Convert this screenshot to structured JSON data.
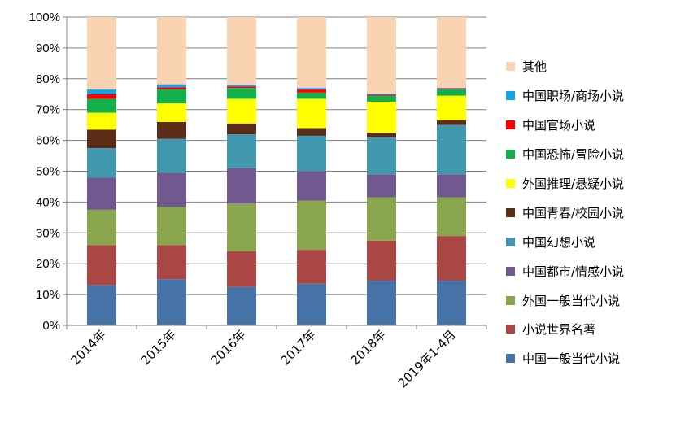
{
  "chart_data": {
    "type": "bar",
    "stacked": true,
    "percent": true,
    "categories": [
      "2014年",
      "2015年",
      "2016年",
      "2017年",
      "2018年",
      "2019年1-4月"
    ],
    "y_ticks": [
      "0%",
      "10%",
      "20%",
      "30%",
      "40%",
      "50%",
      "60%",
      "70%",
      "80%",
      "90%",
      "100%"
    ],
    "ylim": [
      0,
      100
    ],
    "legend_position": "right",
    "series": [
      {
        "name": "中国一般当代小说",
        "color": "#4572A7",
        "values": [
          13,
          15,
          12.5,
          13.5,
          14.5,
          14.5
        ]
      },
      {
        "name": "小说世界名著",
        "color": "#AA4643",
        "values": [
          13,
          11,
          11.5,
          11,
          13,
          14.5
        ]
      },
      {
        "name": "外国一般当代小说",
        "color": "#89A54E",
        "values": [
          11.5,
          12.5,
          15.5,
          16,
          14,
          12.5
        ]
      },
      {
        "name": "中国都市/情感小说",
        "color": "#71588F",
        "values": [
          10.5,
          11,
          11.5,
          9.5,
          7.5,
          7.5
        ]
      },
      {
        "name": "中国幻想小说",
        "color": "#4198AF",
        "values": [
          9.5,
          11,
          11,
          11.5,
          12,
          16
        ]
      },
      {
        "name": "中国青春/校园小说",
        "color": "#5B2C17",
        "values": [
          6,
          5.5,
          3.5,
          2.5,
          1.5,
          1.5
        ]
      },
      {
        "name": "外国推理/悬疑小说",
        "color": "#FFFF00",
        "values": [
          5.5,
          6,
          8,
          9.5,
          10,
          8
        ]
      },
      {
        "name": "中国恐怖/冒险小说",
        "color": "#11B04B",
        "values": [
          4.5,
          4.5,
          3.5,
          2,
          2,
          2
        ]
      },
      {
        "name": "中国官场小说",
        "color": "#FF0000",
        "values": [
          1.5,
          0.7,
          0.5,
          1,
          0.3,
          0.3
        ]
      },
      {
        "name": "中国职场/商场小说",
        "color": "#14A6E4",
        "values": [
          1.5,
          1,
          0.5,
          0.5,
          0.3,
          0.3
        ]
      },
      {
        "name": "其他",
        "color": "#FAD3B3",
        "values": [
          23.5,
          21.8,
          22,
          23,
          24.9,
          22.9
        ]
      }
    ],
    "legend": [
      "其他",
      "中国职场/商场小说",
      "中国官场小说",
      "中国恐怖/冒险小说",
      "外国推理/悬疑小说",
      "中国青春/校园小说",
      "中国幻想小说",
      "中国都市/情感小说",
      "外国一般当代小说",
      "小说世界名著",
      "中国一般当代小说"
    ]
  }
}
